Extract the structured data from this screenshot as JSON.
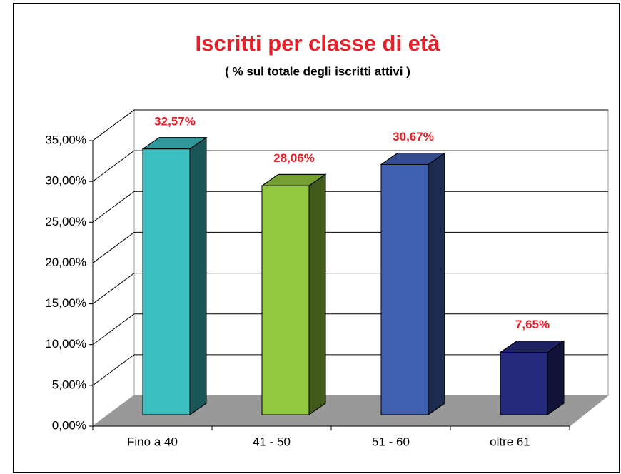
{
  "chart_data": {
    "type": "bar3d",
    "title": "Iscritti per classe di età",
    "subtitle": "( % sul totale degli iscritti attivi )",
    "categories": [
      "Fino a 40",
      "41 - 50",
      "51 - 60",
      "oltre 61"
    ],
    "values": [
      32.57,
      28.06,
      30.67,
      7.65
    ],
    "value_labels": [
      "32,57%",
      "28,06%",
      "30,67%",
      "7,65%"
    ],
    "colors": [
      "#3bbfc1",
      "#93c83e",
      "#3f5faf",
      "#262a7c"
    ],
    "ylim": [
      0,
      35
    ],
    "yticks": [
      {
        "value": 0,
        "label": "0,00%"
      },
      {
        "value": 5,
        "label": "5,00%"
      },
      {
        "value": 10,
        "label": "10,00%"
      },
      {
        "value": 15,
        "label": "15,00%"
      },
      {
        "value": 20,
        "label": "20,00%"
      },
      {
        "value": 25,
        "label": "25,00%"
      },
      {
        "value": 30,
        "label": "30,00%"
      },
      {
        "value": 35,
        "label": "35,00%"
      }
    ],
    "grid": true
  }
}
